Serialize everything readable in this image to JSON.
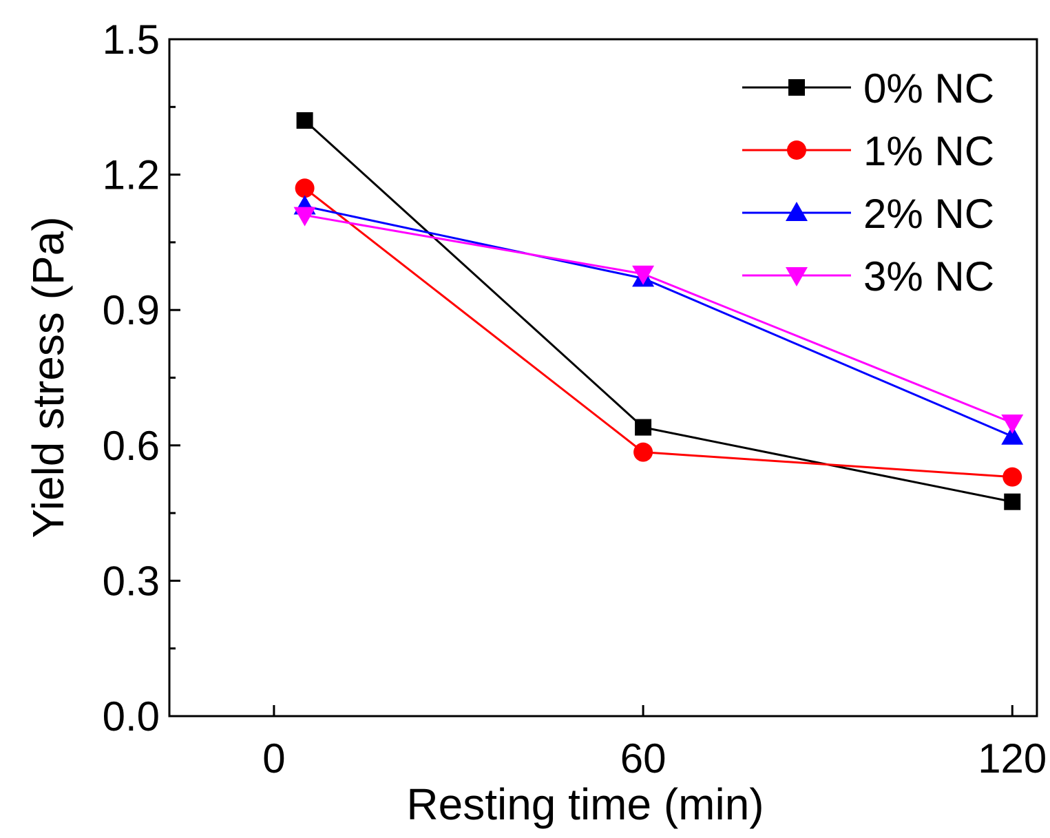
{
  "chart_data": {
    "type": "line",
    "title": "",
    "xlabel": "Resting time (min)",
    "ylabel": "Yield stress (Pa)",
    "xlim": [
      -17,
      124
    ],
    "ylim": [
      0.0,
      1.5
    ],
    "x_ticks": [
      0,
      60,
      120
    ],
    "x_tick_labels": [
      "0",
      "60",
      "120"
    ],
    "y_ticks": [
      0.0,
      0.3,
      0.6,
      0.9,
      1.2,
      1.5
    ],
    "y_tick_labels": [
      "0.0",
      "0.3",
      "0.6",
      "0.9",
      "1.2",
      "1.5"
    ],
    "y_minor_ticks": [
      0.15,
      0.45,
      0.75,
      1.05,
      1.35
    ],
    "grid": false,
    "legend_position": "top-right",
    "series": [
      {
        "name": "0% NC",
        "color": "#000000",
        "marker": "square",
        "x": [
          5,
          60,
          120
        ],
        "y": [
          1.32,
          0.64,
          0.475
        ]
      },
      {
        "name": "1% NC",
        "color": "#ff0000",
        "marker": "circle",
        "x": [
          5,
          60,
          120
        ],
        "y": [
          1.17,
          0.585,
          0.53
        ]
      },
      {
        "name": "2% NC",
        "color": "#0000ff",
        "marker": "triangle-up",
        "x": [
          5,
          60,
          120
        ],
        "y": [
          1.13,
          0.97,
          0.62
        ]
      },
      {
        "name": "3% NC",
        "color": "#ff00ff",
        "marker": "triangle-down",
        "x": [
          5,
          60,
          120
        ],
        "y": [
          1.11,
          0.98,
          0.65
        ]
      }
    ]
  }
}
